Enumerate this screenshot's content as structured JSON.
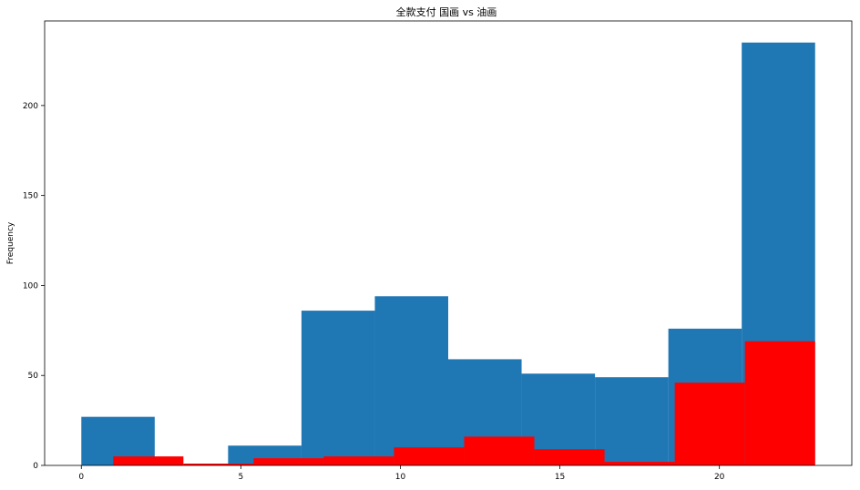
{
  "chart_data": {
    "type": "bar",
    "title": "全款支付 国画 vs 油画",
    "xlabel": "",
    "ylabel": "Frequency",
    "xlim": [
      -1.15,
      24.15
    ],
    "ylim": [
      0,
      247
    ],
    "xticks": [
      0,
      5,
      10,
      15,
      20
    ],
    "yticks": [
      0,
      50,
      100,
      150,
      200
    ],
    "grid": false,
    "series": [
      {
        "color": "#1f77b4",
        "bins": [
          {
            "x0": 0.0,
            "x1": 2.3,
            "value": 27
          },
          {
            "x0": 2.3,
            "x1": 4.6,
            "value": 0
          },
          {
            "x0": 4.6,
            "x1": 6.9,
            "value": 11
          },
          {
            "x0": 6.9,
            "x1": 9.2,
            "value": 86
          },
          {
            "x0": 9.2,
            "x1": 11.5,
            "value": 94
          },
          {
            "x0": 11.5,
            "x1": 13.8,
            "value": 59
          },
          {
            "x0": 13.8,
            "x1": 16.1,
            "value": 51
          },
          {
            "x0": 16.1,
            "x1": 18.4,
            "value": 49
          },
          {
            "x0": 18.4,
            "x1": 20.7,
            "value": 76
          },
          {
            "x0": 20.7,
            "x1": 23.0,
            "value": 235
          }
        ]
      },
      {
        "color": "#ff0000",
        "bins": [
          {
            "x0": 1.0,
            "x1": 3.2,
            "value": 5
          },
          {
            "x0": 3.2,
            "x1": 5.4,
            "value": 1
          },
          {
            "x0": 5.4,
            "x1": 7.6,
            "value": 4
          },
          {
            "x0": 7.6,
            "x1": 9.8,
            "value": 5
          },
          {
            "x0": 9.8,
            "x1": 12.0,
            "value": 10
          },
          {
            "x0": 12.0,
            "x1": 14.2,
            "value": 16
          },
          {
            "x0": 14.2,
            "x1": 16.4,
            "value": 9
          },
          {
            "x0": 16.4,
            "x1": 18.6,
            "value": 2
          },
          {
            "x0": 18.6,
            "x1": 20.8,
            "value": 46
          },
          {
            "x0": 20.8,
            "x1": 23.0,
            "value": 69
          }
        ]
      }
    ]
  }
}
